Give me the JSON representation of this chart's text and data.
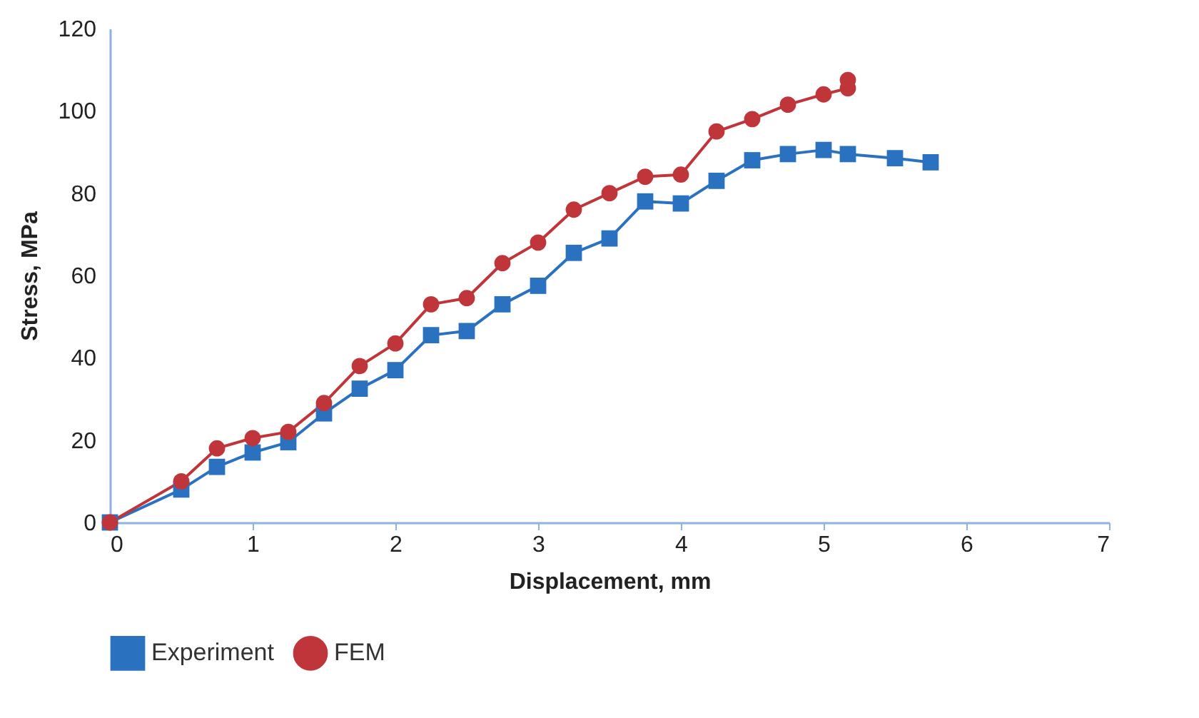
{
  "chart_data": {
    "type": "line",
    "xlabel": "Displacement, mm",
    "ylabel": "Stress, MPa",
    "xlim": [
      0,
      7
    ],
    "xticks": [
      0,
      1,
      2,
      3,
      4,
      5,
      6,
      7
    ],
    "ylim": [
      0,
      120
    ],
    "yticks": [
      0,
      20,
      40,
      60,
      80,
      100,
      120
    ],
    "grid": false,
    "line_style": "solid",
    "legend": "bottom",
    "series": [
      {
        "name": "Experiment",
        "color": "#2a72c0",
        "marker": "square",
        "x": [
          0,
          0.5,
          0.75,
          1,
          1.25,
          1.5,
          1.75,
          2,
          2.25,
          2.5,
          2.75,
          3,
          3.25,
          3.5,
          3.75,
          4,
          4.25,
          4.5,
          4.75,
          5,
          5.17,
          5.5,
          5.75
        ],
        "values": [
          0,
          8,
          13.5,
          17,
          19.5,
          26.5,
          32.5,
          37,
          45.5,
          46.5,
          53,
          57.5,
          65.5,
          69,
          78,
          77.5,
          83,
          88,
          89.5,
          90.5,
          89.5,
          88.5,
          87.5
        ]
      },
      {
        "name": "FEM",
        "color": "#c0353a",
        "marker": "circle",
        "x": [
          0,
          0.5,
          0.75,
          1,
          1.25,
          1.5,
          1.75,
          2,
          2.25,
          2.5,
          2.75,
          3,
          3.25,
          3.5,
          3.75,
          4,
          4.25,
          4.5,
          4.75,
          5,
          5.17,
          5.17
        ],
        "values": [
          0,
          10,
          18,
          20.5,
          22,
          29,
          38,
          43.5,
          53,
          54.5,
          63,
          68,
          76,
          80,
          84,
          84.5,
          95,
          98,
          101.5,
          104,
          105.5,
          107.5
        ]
      }
    ]
  }
}
